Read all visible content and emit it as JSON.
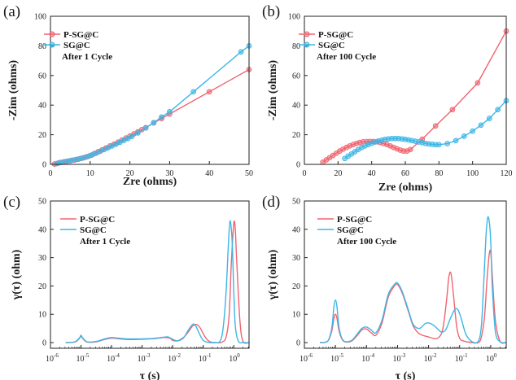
{
  "colors": {
    "red": "#f06470",
    "blue": "#3cb6e6",
    "axis": "#222222"
  },
  "chart_data": [
    {
      "id": "a",
      "type": "line",
      "panel_label": "(a)",
      "xlabel": "Zre (ohms)",
      "ylabel": "-Zim (ohms)",
      "xlim": [
        0,
        50
      ],
      "ylim": [
        0,
        100
      ],
      "xticks": [
        0,
        10,
        20,
        30,
        40,
        50
      ],
      "yticks": [
        0,
        20,
        40,
        60,
        80,
        100
      ],
      "annotation": "After 1 Cycle",
      "legend_position": "top-left",
      "series": [
        {
          "name": "P-SG@C",
          "color": "red",
          "marker": "circle",
          "x": [
            1.0,
            2.0,
            3.0,
            4.0,
            5.0,
            6.0,
            7.0,
            8.0,
            9.0,
            10.0,
            11.0,
            12.0,
            13.0,
            14.0,
            15.0,
            16.0,
            17.0,
            18.0,
            19.0,
            20.0,
            21.0,
            22.0,
            23.0,
            24.0,
            26.0,
            28.0,
            30.0,
            40.0,
            50.0
          ],
          "y": [
            0.2,
            0.9,
            1.4,
            1.9,
            2.4,
            2.9,
            3.5,
            4.2,
            5.0,
            6.0,
            7.2,
            8.5,
            9.8,
            11.1,
            12.4,
            13.7,
            15.0,
            16.4,
            17.8,
            19.2,
            20.6,
            22.0,
            23.4,
            24.8,
            28.0,
            31.0,
            34.0,
            49.0,
            64.0
          ]
        },
        {
          "name": "SG@C",
          "color": "blue",
          "marker": "circle",
          "x": [
            1.5,
            2.5,
            3.5,
            4.5,
            5.5,
            6.5,
            7.5,
            8.5,
            9.5,
            10.5,
            11.5,
            12.5,
            13.5,
            14.5,
            15.5,
            16.5,
            17.5,
            18.5,
            19.5,
            20.5,
            22.0,
            24.0,
            26.0,
            28.0,
            30.0,
            36.0,
            48.0,
            50.0
          ],
          "y": [
            0.5,
            1.3,
            1.8,
            2.3,
            2.8,
            3.3,
            3.9,
            4.6,
            5.4,
            6.4,
            7.6,
            8.8,
            10.0,
            11.2,
            12.4,
            13.6,
            14.9,
            16.2,
            17.5,
            18.9,
            21.2,
            24.6,
            28.2,
            32.0,
            35.5,
            49.0,
            76.0,
            80.0
          ]
        }
      ]
    },
    {
      "id": "b",
      "type": "line",
      "panel_label": "(b)",
      "xlabel": "Zre (ohms)",
      "ylabel": "-Zim (ohms)",
      "xlim": [
        0,
        120
      ],
      "ylim": [
        0,
        100
      ],
      "xticks": [
        0,
        20,
        40,
        60,
        80,
        100,
        120
      ],
      "yticks": [
        0,
        20,
        40,
        60,
        80,
        100
      ],
      "annotation": "After 100 Cycle",
      "legend_position": "top-left",
      "series": [
        {
          "name": "P-SG@C",
          "color": "red",
          "marker": "circle",
          "x": [
            11,
            13,
            15,
            17,
            19,
            21,
            23,
            25,
            27,
            29,
            31,
            33,
            35,
            37,
            39,
            41,
            43,
            45,
            47,
            49,
            51,
            53,
            55,
            57,
            59,
            61,
            63,
            70,
            78,
            88,
            103,
            120
          ],
          "y": [
            1.5,
            3.0,
            4.5,
            6.0,
            7.5,
            9.0,
            10.3,
            11.5,
            12.5,
            13.4,
            14.2,
            14.8,
            15.2,
            15.4,
            15.5,
            15.4,
            15.2,
            14.8,
            14.2,
            13.4,
            12.5,
            11.5,
            10.5,
            9.6,
            9.0,
            9.0,
            10.0,
            17.0,
            26.0,
            37.0,
            55.0,
            90.0
          ]
        },
        {
          "name": "SG@C",
          "color": "blue",
          "marker": "circle",
          "x": [
            24,
            26,
            28,
            30,
            32,
            34,
            36,
            38,
            40,
            42,
            44,
            46,
            48,
            50,
            52,
            54,
            56,
            58,
            60,
            62,
            64,
            66,
            68,
            70,
            72,
            74,
            76,
            78,
            80,
            85,
            90,
            95,
            100,
            105,
            110,
            115,
            120
          ],
          "y": [
            4.0,
            5.5,
            7.0,
            8.5,
            10.0,
            11.3,
            12.4,
            13.4,
            14.3,
            15.1,
            15.8,
            16.4,
            16.9,
            17.2,
            17.4,
            17.5,
            17.4,
            17.2,
            16.9,
            16.5,
            16.1,
            15.6,
            15.1,
            14.6,
            14.2,
            13.8,
            13.5,
            13.3,
            13.3,
            14.0,
            16.0,
            19.0,
            22.5,
            26.5,
            31.0,
            37.0,
            43.0
          ]
        }
      ]
    },
    {
      "id": "c",
      "type": "line",
      "panel_label": "(c)",
      "xlabel": "τ (s)",
      "ylabel": "γ(τ) (ohm)",
      "xscale": "log",
      "xlim": [
        -6,
        0.5
      ],
      "ylim": [
        -2,
        50
      ],
      "xtick_exponents": [
        -6,
        -5,
        -4,
        -3,
        -2,
        -1,
        0
      ],
      "yticks": [
        0,
        10,
        20,
        30,
        40,
        50
      ],
      "annotation": "After 1 Cycle",
      "legend_position": "top-left",
      "series": [
        {
          "name": "P-SG@C",
          "color": "red",
          "x_log10": [
            -5.5,
            -5.2,
            -5.05,
            -5.0,
            -4.95,
            -4.8,
            -4.5,
            -4.2,
            -4.0,
            -3.8,
            -3.5,
            -3.2,
            -3.0,
            -2.6,
            -2.3,
            -2.1,
            -2.0,
            -1.85,
            -1.65,
            -1.5,
            -1.35,
            -1.22,
            -1.1,
            -0.95,
            -0.8,
            -0.6,
            -0.4,
            -0.25,
            -0.15,
            -0.08,
            0.0,
            0.05,
            0.1,
            0.2,
            0.3,
            0.5
          ],
          "y": [
            0.0,
            0.2,
            1.5,
            2.5,
            1.5,
            0.2,
            0.3,
            1.2,
            1.6,
            1.4,
            1.1,
            1.1,
            1.2,
            1.4,
            1.8,
            1.6,
            0.8,
            0.6,
            1.8,
            3.6,
            5.8,
            6.4,
            5.2,
            2.2,
            0.4,
            0.0,
            0.1,
            2.0,
            10.0,
            28.0,
            42.0,
            40.0,
            28.0,
            8.0,
            0.5,
            0.0
          ]
        },
        {
          "name": "SG@C",
          "color": "blue",
          "x_log10": [
            -5.5,
            -5.2,
            -5.05,
            -5.0,
            -4.95,
            -4.8,
            -4.5,
            -4.2,
            -4.0,
            -3.8,
            -3.5,
            -3.2,
            -3.0,
            -2.6,
            -2.3,
            -2.15,
            -2.0,
            -1.85,
            -1.65,
            -1.5,
            -1.35,
            -1.25,
            -1.12,
            -1.0,
            -0.85,
            -0.6,
            -0.45,
            -0.35,
            -0.25,
            -0.18,
            -0.12,
            -0.05,
            0.0,
            0.05,
            0.15,
            0.3,
            0.5
          ],
          "y": [
            0.0,
            0.3,
            1.7,
            2.6,
            1.7,
            0.3,
            0.4,
            1.4,
            1.8,
            1.6,
            1.3,
            1.3,
            1.3,
            1.5,
            1.9,
            2.0,
            1.2,
            0.6,
            1.6,
            4.2,
            6.4,
            6.0,
            3.0,
            0.8,
            0.1,
            0.0,
            0.5,
            5.0,
            18.0,
            34.0,
            43.0,
            35.0,
            18.0,
            6.0,
            0.5,
            0.0,
            0.0
          ]
        }
      ]
    },
    {
      "id": "d",
      "type": "line",
      "panel_label": "(d)",
      "xlabel": "τ (s)",
      "ylabel": "γ(τ) (ohm)",
      "xscale": "log",
      "xlim": [
        -6,
        0.5
      ],
      "ylim": [
        -2,
        50
      ],
      "xtick_exponents": [
        -6,
        -5,
        -4,
        -3,
        -2,
        -1,
        0
      ],
      "yticks": [
        0,
        10,
        20,
        30,
        40,
        50
      ],
      "annotation": "After 100 Cycle",
      "legend_position": "top-left",
      "series": [
        {
          "name": "P-SG@C",
          "color": "red",
          "x_log10": [
            -5.5,
            -5.25,
            -5.12,
            -5.05,
            -5.0,
            -4.95,
            -4.88,
            -4.75,
            -4.5,
            -4.3,
            -4.15,
            -4.0,
            -3.85,
            -3.7,
            -3.5,
            -3.3,
            -3.1,
            -3.0,
            -2.85,
            -2.65,
            -2.5,
            -2.35,
            -2.2,
            -2.0,
            -1.85,
            -1.7,
            -1.55,
            -1.42,
            -1.35,
            -1.28,
            -1.2,
            -1.1,
            -1.0,
            -0.85,
            -0.6,
            -0.4,
            -0.3,
            -0.2,
            -0.12,
            -0.05,
            0.0,
            0.05,
            0.15,
            0.3,
            0.5
          ],
          "y": [
            0.0,
            0.5,
            4.0,
            8.5,
            10.0,
            8.5,
            4.0,
            0.6,
            0.4,
            2.5,
            4.5,
            4.8,
            3.5,
            2.6,
            7.0,
            16.0,
            20.0,
            20.5,
            17.5,
            11.0,
            6.0,
            3.6,
            2.6,
            2.0,
            1.5,
            1.6,
            4.5,
            15.0,
            23.0,
            24.5,
            17.0,
            6.0,
            1.5,
            0.5,
            0.0,
            0.0,
            2.0,
            9.0,
            22.0,
            31.0,
            32.0,
            24.0,
            8.0,
            0.5,
            0.0
          ]
        },
        {
          "name": "SG@C",
          "color": "blue",
          "x_log10": [
            -5.5,
            -5.25,
            -5.12,
            -5.05,
            -5.0,
            -4.95,
            -4.88,
            -4.75,
            -4.5,
            -4.3,
            -4.15,
            -4.0,
            -3.85,
            -3.7,
            -3.5,
            -3.3,
            -3.1,
            -3.0,
            -2.85,
            -2.65,
            -2.5,
            -2.3,
            -2.1,
            -1.95,
            -1.8,
            -1.6,
            -1.45,
            -1.3,
            -1.15,
            -1.05,
            -0.95,
            -0.8,
            -0.6,
            -0.4,
            -0.3,
            -0.22,
            -0.15,
            -0.1,
            -0.05,
            0.0,
            0.05,
            0.15,
            0.3,
            0.5
          ],
          "y": [
            0.0,
            0.5,
            5.0,
            12.5,
            15.0,
            12.5,
            5.0,
            0.8,
            0.6,
            3.0,
            5.0,
            5.5,
            4.5,
            3.5,
            8.0,
            17.0,
            20.5,
            21.0,
            18.0,
            11.5,
            6.5,
            5.0,
            6.8,
            6.8,
            5.8,
            3.8,
            4.5,
            8.5,
            11.8,
            11.5,
            8.5,
            3.0,
            0.3,
            0.5,
            6.0,
            22.0,
            38.0,
            44.0,
            43.0,
            36.0,
            20.0,
            4.0,
            0.3,
            0.0
          ]
        }
      ]
    }
  ]
}
